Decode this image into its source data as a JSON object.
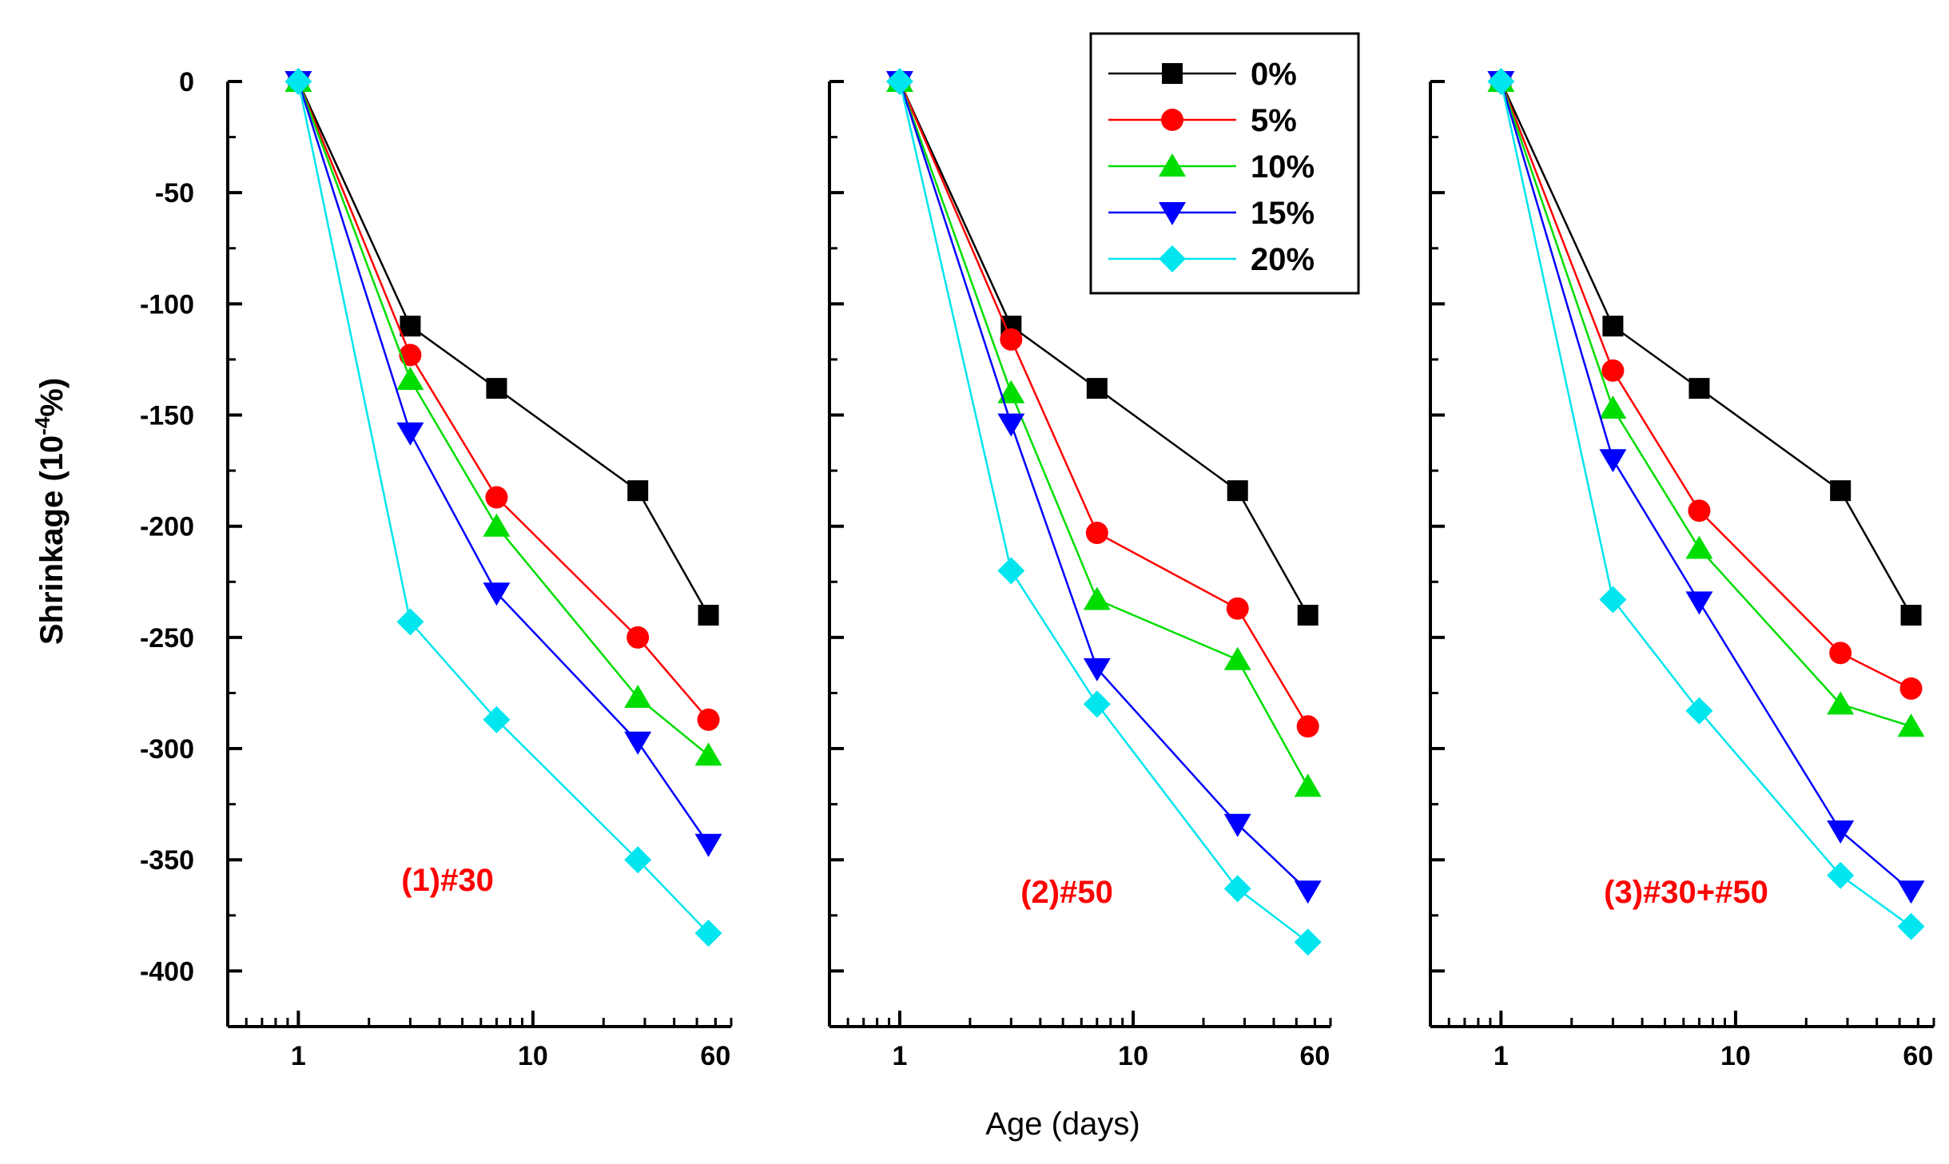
{
  "chart_data": {
    "type": "line",
    "xlabel": "Age (days)",
    "ylabel_main": "Shrinkage (10",
    "ylabel_exp": "-4",
    "ylabel_end": "%)",
    "x_scale": "log",
    "xlim": [
      0.5,
      70
    ],
    "ylim": [
      -425,
      0
    ],
    "x_ticks": [
      1,
      10,
      60
    ],
    "x_tick_labels": [
      "1",
      "10",
      "60"
    ],
    "y_ticks": [
      0,
      -50,
      -100,
      -150,
      -200,
      -250,
      -300,
      -350,
      -400
    ],
    "y_tick_labels": [
      "0",
      "-50",
      "-100",
      "-150",
      "-200",
      "-250",
      "-300",
      "-350",
      "-400"
    ],
    "x": [
      1,
      3,
      7,
      28,
      56
    ],
    "legend_position": "top-center",
    "legend": [
      {
        "label": "0%",
        "color": "#000000",
        "marker": "square"
      },
      {
        "label": "5%",
        "color": "#ff0000",
        "marker": "circle"
      },
      {
        "label": "10%",
        "color": "#00dd00",
        "marker": "triangle-up"
      },
      {
        "label": "15%",
        "color": "#0000ff",
        "marker": "triangle-down"
      },
      {
        "label": "20%",
        "color": "#00e5ee",
        "marker": "diamond"
      }
    ],
    "panels": [
      {
        "label": "(1)#30",
        "series": [
          {
            "name": "0%",
            "values": [
              0,
              -110,
              -138,
              -184,
              -240
            ]
          },
          {
            "name": "5%",
            "values": [
              0,
              -123,
              -187,
              -250,
              -287
            ]
          },
          {
            "name": "10%",
            "values": [
              0,
              -134,
              -200,
              -277,
              -303
            ]
          },
          {
            "name": "15%",
            "values": [
              0,
              -158,
              -230,
              -297,
              -343
            ]
          },
          {
            "name": "20%",
            "values": [
              0,
              -243,
              -287,
              -350,
              -383
            ]
          }
        ]
      },
      {
        "label": "(2)#50",
        "series": [
          {
            "name": "0%",
            "values": [
              0,
              -110,
              -138,
              -184,
              -240
            ]
          },
          {
            "name": "5%",
            "values": [
              0,
              -116,
              -203,
              -237,
              -290
            ]
          },
          {
            "name": "10%",
            "values": [
              0,
              -140,
              -233,
              -260,
              -317
            ]
          },
          {
            "name": "15%",
            "values": [
              0,
              -154,
              -264,
              -334,
              -364
            ]
          },
          {
            "name": "20%",
            "values": [
              0,
              -220,
              -280,
              -363,
              -387
            ]
          }
        ]
      },
      {
        "label": "(3)#30+#50",
        "series": [
          {
            "name": "0%",
            "values": [
              0,
              -110,
              -138,
              -184,
              -240
            ]
          },
          {
            "name": "5%",
            "values": [
              0,
              -130,
              -193,
              -257,
              -273
            ]
          },
          {
            "name": "10%",
            "values": [
              0,
              -147,
              -210,
              -280,
              -290
            ]
          },
          {
            "name": "15%",
            "values": [
              0,
              -170,
              -234,
              -337,
              -364
            ]
          },
          {
            "name": "20%",
            "values": [
              0,
              -233,
              -283,
              -357,
              -380
            ]
          }
        ]
      }
    ]
  }
}
